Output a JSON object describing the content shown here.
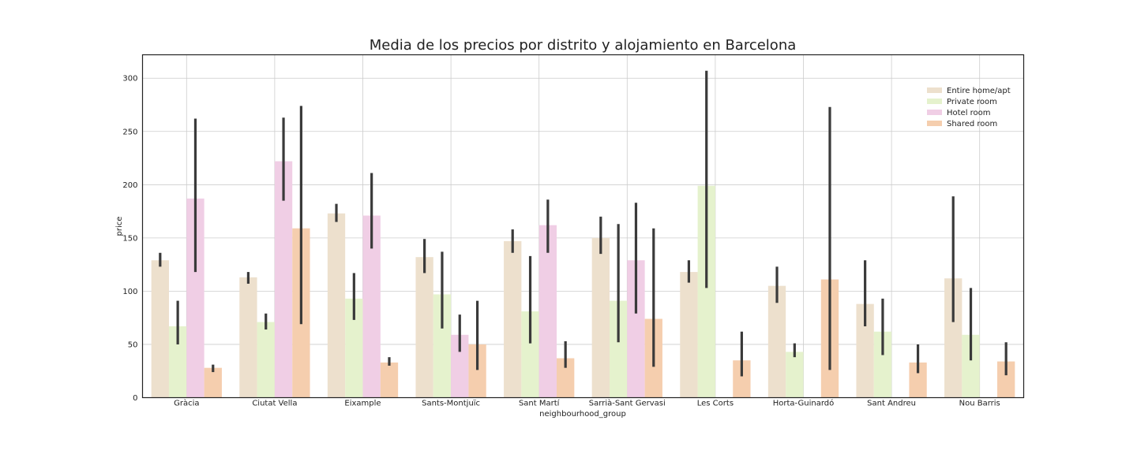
{
  "chart_data": {
    "type": "bar",
    "title": "Media de los precios por distrito y alojamiento en Barcelona",
    "xlabel": "neighbourhood_group",
    "ylabel": "price",
    "ylim": [
      0,
      322
    ],
    "yticks": [
      0,
      50,
      100,
      150,
      200,
      250,
      300
    ],
    "grid": true,
    "legend_position": "top-right",
    "categories": [
      "Gràcia",
      "Ciutat Vella",
      "Eixample",
      "Sants-Montjuïc",
      "Sant Martí",
      "Sarrià-Sant Gervasi",
      "Les Corts",
      "Horta-Guinardó",
      "Sant Andreu",
      "Nou Barris"
    ],
    "series": [
      {
        "name": "Entire home/apt",
        "color": "#ede0cd",
        "values": [
          129,
          113,
          173,
          132,
          147,
          150,
          118,
          105,
          88,
          112
        ],
        "err_low": [
          123,
          107,
          165,
          117,
          136,
          135,
          108,
          89,
          67,
          71
        ],
        "err_high": [
          136,
          118,
          182,
          149,
          158,
          170,
          129,
          123,
          129,
          189
        ]
      },
      {
        "name": "Private room",
        "color": "#e5f2cd",
        "values": [
          67,
          71,
          93,
          97,
          81,
          91,
          199,
          43,
          62,
          59
        ],
        "err_low": [
          50,
          64,
          73,
          65,
          51,
          52,
          103,
          38,
          40,
          35
        ],
        "err_high": [
          91,
          79,
          117,
          137,
          133,
          163,
          307,
          51,
          93,
          103
        ]
      },
      {
        "name": "Hotel room",
        "color": "#f0cee5",
        "values": [
          187,
          222,
          171,
          59,
          162,
          129,
          null,
          null,
          null,
          null
        ],
        "err_low": [
          118,
          185,
          140,
          43,
          136,
          79,
          null,
          null,
          null,
          null
        ],
        "err_high": [
          262,
          263,
          211,
          78,
          186,
          183,
          null,
          null,
          null,
          null
        ]
      },
      {
        "name": "Shared room",
        "color": "#f5ceae",
        "values": [
          28,
          159,
          33,
          50,
          37,
          74,
          35,
          111,
          33,
          34
        ],
        "err_low": [
          24,
          69,
          30,
          26,
          28,
          29,
          20,
          26,
          23,
          21
        ],
        "err_high": [
          31,
          274,
          38,
          91,
          53,
          159,
          62,
          273,
          50,
          52
        ]
      }
    ]
  }
}
